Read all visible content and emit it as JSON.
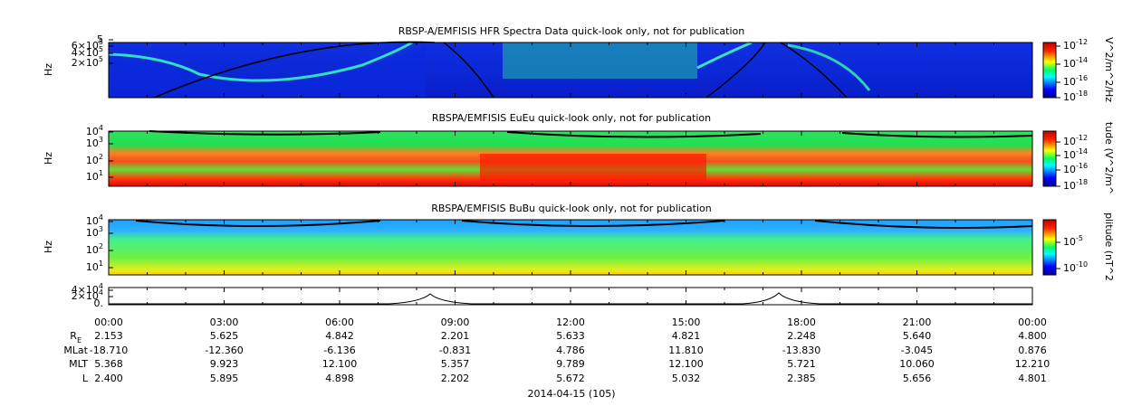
{
  "panels": [
    {
      "title": "RBSP-A/EMFISIS  HFR Spectra Data quick-look only, not for publication",
      "ylabel": "Hz",
      "yticks": [
        {
          "base": "5",
          "exp": ""
        },
        {
          "base": "6×10",
          "exp": "5"
        },
        {
          "base": "4×10",
          "exp": "5"
        },
        {
          "base": "2×10",
          "exp": "5"
        }
      ],
      "colorbar_label": "V^2/m^2/Hz",
      "colorbar_ticks": [
        {
          "base": "10",
          "exp": "-12"
        },
        {
          "base": "10",
          "exp": "-14"
        },
        {
          "base": "10",
          "exp": "-16"
        },
        {
          "base": "10",
          "exp": "-18"
        }
      ]
    },
    {
      "title": "RBSPA/EMFISIS  EuEu quick-look only, not for publication",
      "ylabel": "Hz",
      "yticks": [
        {
          "base": "10",
          "exp": "4"
        },
        {
          "base": "10",
          "exp": "3"
        },
        {
          "base": "10",
          "exp": "2"
        },
        {
          "base": "10",
          "exp": "1"
        }
      ],
      "colorbar_label": "tude (V^2/m^",
      "colorbar_ticks": [
        {
          "base": "10",
          "exp": "-12"
        },
        {
          "base": "10",
          "exp": "-14"
        },
        {
          "base": "10",
          "exp": "-16"
        },
        {
          "base": "10",
          "exp": "-18"
        }
      ]
    },
    {
      "title": "RBSPA/EMFISIS  BuBu quick-look only, not for publication",
      "ylabel": "Hz",
      "yticks": [
        {
          "base": "10",
          "exp": "4"
        },
        {
          "base": "10",
          "exp": "3"
        },
        {
          "base": "10",
          "exp": "2"
        },
        {
          "base": "10",
          "exp": "1"
        }
      ],
      "colorbar_label": "plitude (nT^2",
      "colorbar_ticks": [
        {
          "base": "10",
          "exp": "-5"
        },
        {
          "base": "10",
          "exp": "-10"
        }
      ]
    },
    {
      "yticks": [
        {
          "base": "4×10",
          "exp": "4"
        },
        {
          "base": "2×10",
          "exp": "4"
        },
        {
          "base": "0.",
          "exp": ""
        }
      ]
    }
  ],
  "time_ticks": [
    "00:00",
    "03:00",
    "06:00",
    "09:00",
    "12:00",
    "15:00",
    "18:00",
    "21:00",
    "00:00"
  ],
  "ephemeris": [
    {
      "label": "R",
      "sub": "E",
      "values": [
        "2.153",
        "5.625",
        "4.842",
        "2.201",
        "5.633",
        "4.821",
        "2.248",
        "5.640",
        "4.800"
      ]
    },
    {
      "label": "MLat",
      "values": [
        "-18.710",
        "-12.360",
        "-6.136",
        "-0.831",
        "4.786",
        "11.810",
        "-13.830",
        "-3.045",
        "0.876"
      ]
    },
    {
      "label": "MLT",
      "values": [
        "5.368",
        "9.923",
        "12.100",
        "5.357",
        "9.789",
        "12.100",
        "5.721",
        "10.060",
        "12.210"
      ]
    },
    {
      "label": "L",
      "values": [
        "2.400",
        "5.895",
        "4.898",
        "2.202",
        "5.672",
        "5.032",
        "2.385",
        "5.656",
        "4.801"
      ]
    }
  ],
  "date_label": "2014-04-15 (105)"
}
